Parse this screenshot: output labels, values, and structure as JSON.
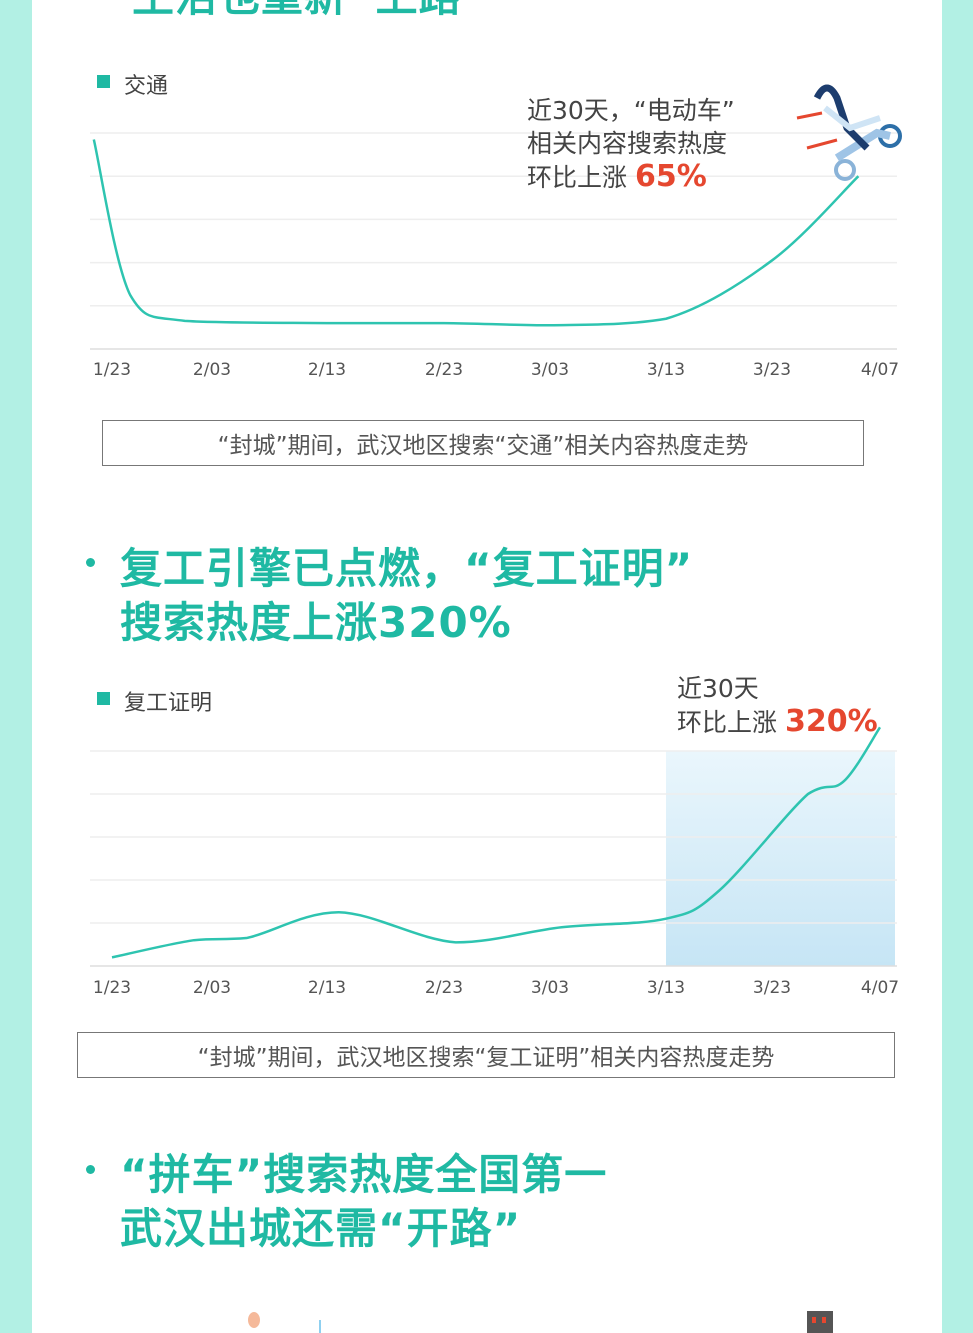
{
  "colors": {
    "accent": "#1fb9a3",
    "highlight": "#e5472f",
    "frame": "#b2f0e4",
    "line": "#2ec4b0"
  },
  "top_heading": "生活也重新“上路”",
  "section2": {
    "heading_line1": "复工引擎已点燃，“复工证明”",
    "heading_line2": "搜索热度上涨320%"
  },
  "section3": {
    "heading_line1": "“拼车”搜索热度全国第一",
    "heading_line2": "武汉出城还需“开路”"
  },
  "chart_data": [
    {
      "type": "line",
      "legend": "交通",
      "legend_position": "top-left",
      "grid": true,
      "annotation": {
        "line1": "近30天，“电动车”",
        "line2": "相关内容搜索热度",
        "line3_prefix": "环比上涨",
        "value": "65%"
      },
      "caption": "“封城”期间，武汉地区搜索“交通”相关内容热度走势",
      "x_ticks": [
        "1/23",
        "2/03",
        "2/13",
        "2/23",
        "3/03",
        "3/13",
        "3/23",
        "4/07"
      ],
      "ylim": [
        0,
        100
      ],
      "points": [
        [
          "1/21",
          97
        ],
        [
          "1/25",
          25
        ],
        [
          "1/31",
          13
        ],
        [
          "2/13",
          12
        ],
        [
          "2/23",
          12
        ],
        [
          "3/03",
          11
        ],
        [
          "3/13",
          14
        ],
        [
          "3/23",
          41
        ],
        [
          "4/04",
          80
        ]
      ],
      "illustration": "woman-on-scooter"
    },
    {
      "type": "line",
      "legend": "复工证明",
      "legend_position": "top-left",
      "grid": true,
      "annotation": {
        "line1": "近30天",
        "line2_prefix": "环比上涨",
        "value": "320%"
      },
      "caption": "“封城”期间，武汉地区搜索“复工证明”相关内容热度走势",
      "x_ticks": [
        "1/23",
        "2/03",
        "2/13",
        "2/23",
        "3/03",
        "3/13",
        "3/23",
        "4/07"
      ],
      "ylim": [
        0,
        100
      ],
      "highlight_range": [
        "3/13",
        "4/07"
      ],
      "points": [
        [
          "1/23",
          4
        ],
        [
          "2/01",
          12
        ],
        [
          "2/06",
          13
        ],
        [
          "2/14",
          25
        ],
        [
          "2/24",
          11
        ],
        [
          "3/04",
          18
        ],
        [
          "3/13",
          22
        ],
        [
          "3/18",
          35
        ],
        [
          "3/28",
          80
        ],
        [
          "4/02",
          86
        ],
        [
          "4/07",
          111
        ]
      ]
    }
  ]
}
